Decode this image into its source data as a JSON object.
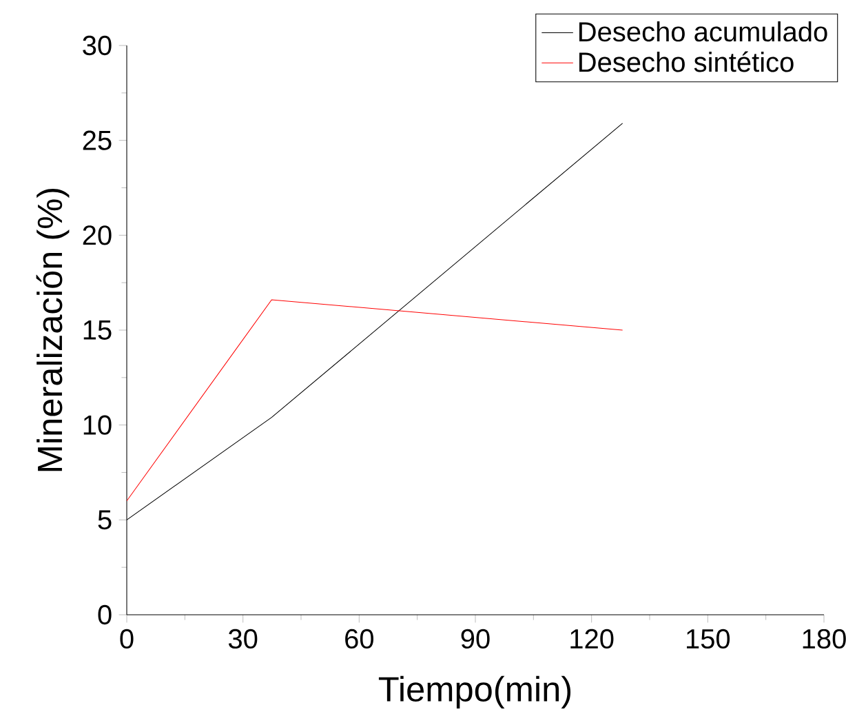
{
  "chart_data": {
    "type": "line",
    "xlabel": "Tiempo(min)",
    "ylabel": "Mineralización (%)",
    "series": [
      {
        "name": "Desecho acumulado",
        "color": "#000000",
        "x": [
          0,
          37.4,
          128
        ],
        "values": [
          5,
          10.4,
          25.9
        ]
      },
      {
        "name": "Desecho sintético",
        "color": "#ff0000",
        "x": [
          0,
          37.4,
          128
        ],
        "values": [
          6,
          16.6,
          15.0
        ]
      }
    ],
    "xlim": [
      0,
      180
    ],
    "xticks": [
      0,
      30,
      60,
      90,
      120,
      150,
      180
    ],
    "ylim": [
      0,
      30
    ],
    "yticks": [
      0,
      5,
      10,
      15,
      20,
      25,
      30
    ],
    "grid": false,
    "legend": "top right",
    "marker": "none",
    "line_style": "solid"
  }
}
